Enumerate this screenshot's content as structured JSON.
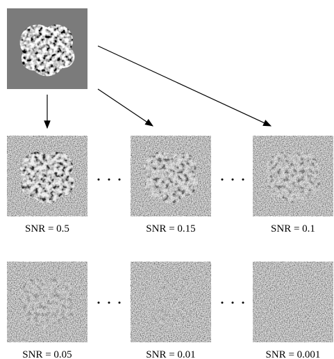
{
  "panels": [
    {
      "label": "SNR = 0.5"
    },
    {
      "label": "SNR = 0.15"
    },
    {
      "label": "SNR = 0.1"
    },
    {
      "label": "SNR = 0.05"
    },
    {
      "label": "SNR = 0.01"
    },
    {
      "label": "SNR = 0.001"
    }
  ]
}
